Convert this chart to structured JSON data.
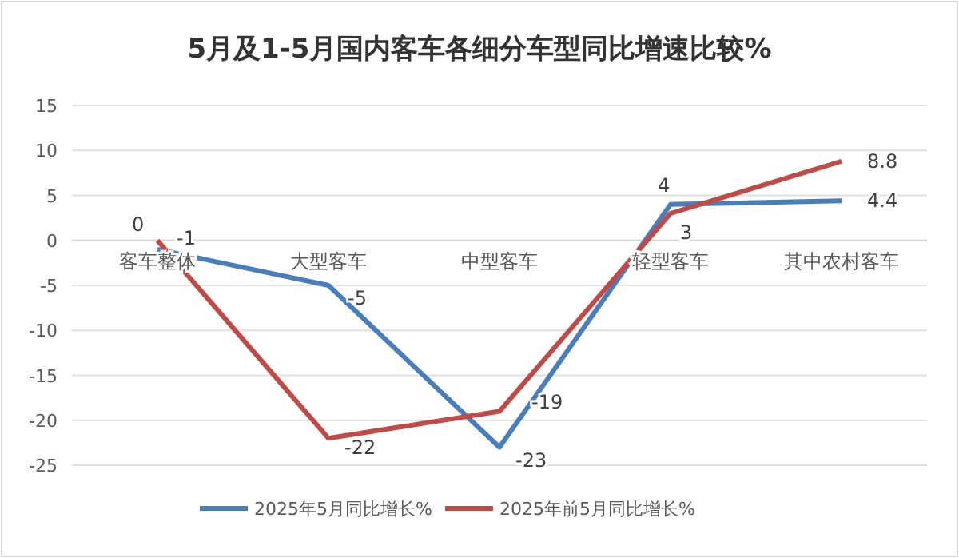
{
  "chart_data": {
    "type": "line",
    "title": "5月及1-5月国内客车各细分车型同比增速比较%",
    "categories": [
      "客车整体",
      "大型客车",
      "中型客车",
      "轻型客车",
      "其中农村客车"
    ],
    "series": [
      {
        "name": "2025年5月同比增长%",
        "color": "#4a7ebb",
        "values": [
          -1,
          -5,
          -23,
          4,
          4.4
        ]
      },
      {
        "name": "2025年前5月同比增长%",
        "color": "#be4b48",
        "values": [
          0,
          -22,
          -19,
          3,
          8.8
        ]
      }
    ],
    "ylim": [
      -25,
      15
    ],
    "yticks": [
      -25,
      -20,
      -15,
      -10,
      -5,
      0,
      5,
      10,
      15
    ],
    "grid": "y",
    "legend": "bottom",
    "data_labels": true,
    "marker": "none",
    "line_style": "solid"
  }
}
